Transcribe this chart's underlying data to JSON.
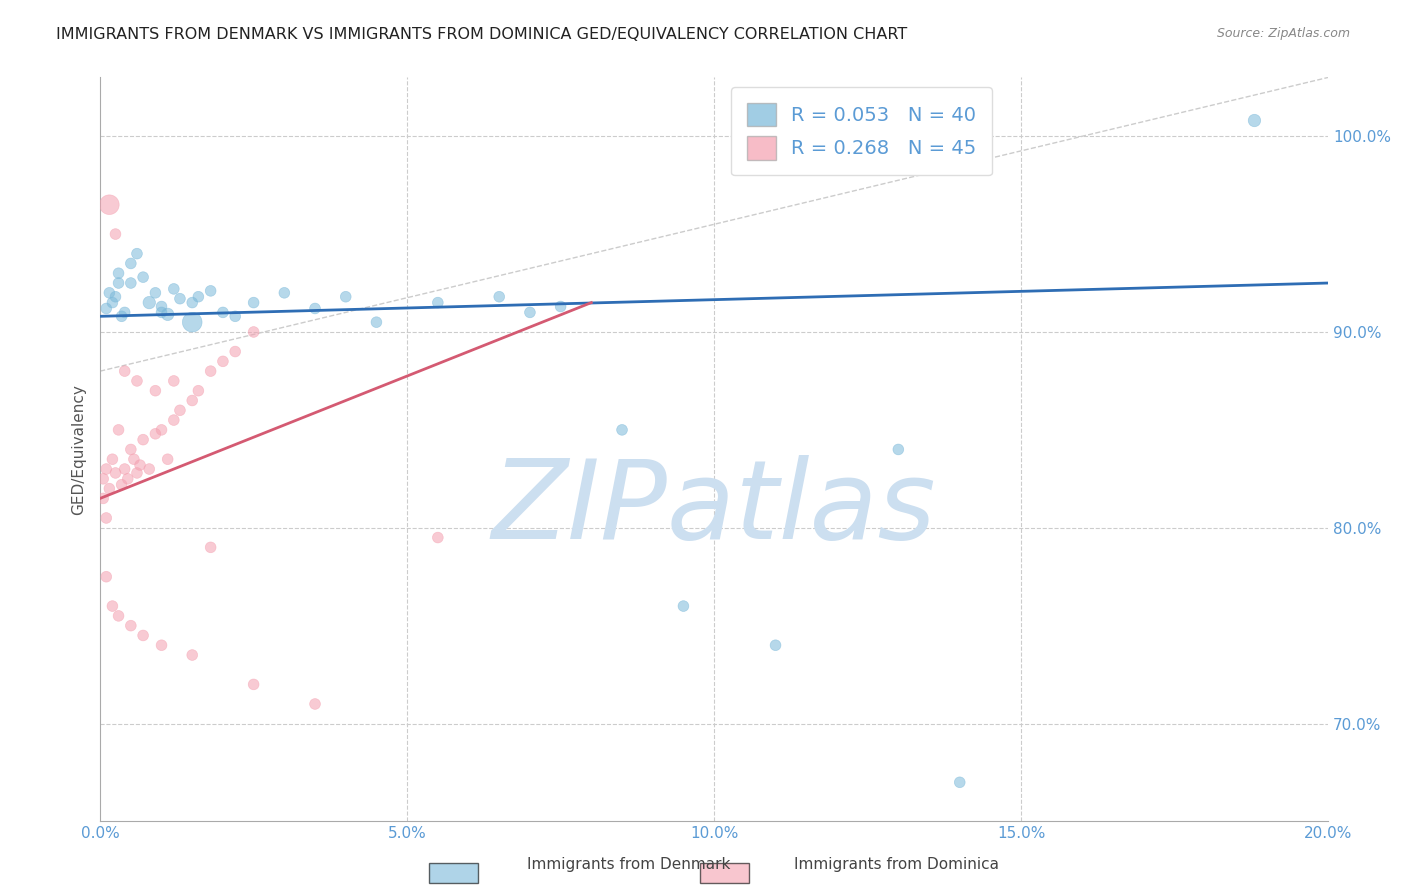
{
  "title": "IMMIGRANTS FROM DENMARK VS IMMIGRANTS FROM DOMINICA GED/EQUIVALENCY CORRELATION CHART",
  "source": "Source: ZipAtlas.com",
  "xlabel_ticks": [
    "0.0%",
    "5.0%",
    "10.0%",
    "15.0%",
    "20.0%"
  ],
  "xlabel_values": [
    0.0,
    5.0,
    10.0,
    15.0,
    20.0
  ],
  "ylabel_ticks": [
    "70.0%",
    "80.0%",
    "90.0%",
    "100.0%"
  ],
  "ylabel_values": [
    70.0,
    80.0,
    90.0,
    100.0
  ],
  "xmin": 0.0,
  "xmax": 20.0,
  "ymin": 65.0,
  "ymax": 103.0,
  "denmark_color": "#7ab8d9",
  "dominica_color": "#f4a0b0",
  "denmark_label": "Immigrants from Denmark",
  "dominica_label": "Immigrants from Dominica",
  "denmark_R": 0.053,
  "denmark_N": 40,
  "dominica_R": 0.268,
  "dominica_N": 45,
  "trend_blue": "#2e6db4",
  "trend_pink": "#d45a72",
  "diag_color": "#cccccc",
  "watermark": "ZIPatlas",
  "watermark_color": "#ccdff0",
  "title_color": "#222222",
  "right_axis_color": "#5b9bd5",
  "background_color": "#ffffff",
  "denmark_x": [
    0.1,
    0.15,
    0.2,
    0.25,
    0.3,
    0.35,
    0.4,
    0.5,
    0.6,
    0.7,
    0.8,
    0.9,
    1.0,
    1.1,
    1.2,
    1.3,
    1.5,
    1.6,
    1.8,
    2.0,
    2.2,
    2.5,
    3.0,
    3.5,
    4.0,
    4.5,
    5.5,
    6.5,
    7.0,
    7.5,
    8.5,
    9.5,
    11.0,
    13.0,
    14.0,
    18.8,
    0.3,
    0.5,
    1.0,
    1.5
  ],
  "denmark_y": [
    91.2,
    92.0,
    91.5,
    91.8,
    92.5,
    90.8,
    91.0,
    93.5,
    94.0,
    92.8,
    91.5,
    92.0,
    91.3,
    90.9,
    92.2,
    91.7,
    90.5,
    91.8,
    92.1,
    91.0,
    90.8,
    91.5,
    92.0,
    91.2,
    91.8,
    90.5,
    91.5,
    91.8,
    91.0,
    91.3,
    85.0,
    76.0,
    74.0,
    84.0,
    67.0,
    100.8,
    93.0,
    92.5,
    91.0,
    91.5
  ],
  "denmark_sizes": [
    60,
    60,
    60,
    60,
    60,
    60,
    60,
    60,
    60,
    60,
    80,
    60,
    60,
    80,
    60,
    60,
    200,
    60,
    60,
    60,
    60,
    60,
    60,
    60,
    60,
    60,
    60,
    60,
    60,
    60,
    60,
    60,
    60,
    60,
    60,
    80,
    60,
    60,
    60,
    60
  ],
  "dominica_x": [
    0.05,
    0.1,
    0.15,
    0.2,
    0.25,
    0.3,
    0.35,
    0.4,
    0.45,
    0.5,
    0.55,
    0.6,
    0.65,
    0.7,
    0.8,
    0.9,
    1.0,
    1.1,
    1.2,
    1.3,
    1.5,
    1.6,
    1.8,
    2.0,
    2.2,
    2.5,
    0.1,
    0.2,
    0.3,
    0.5,
    0.7,
    1.0,
    1.5,
    2.5,
    3.5,
    0.15,
    0.25,
    0.4,
    0.6,
    0.9,
    1.2,
    1.8,
    5.5,
    0.05,
    0.1
  ],
  "dominica_y": [
    82.5,
    83.0,
    82.0,
    83.5,
    82.8,
    85.0,
    82.2,
    83.0,
    82.5,
    84.0,
    83.5,
    82.8,
    83.2,
    84.5,
    83.0,
    84.8,
    85.0,
    83.5,
    85.5,
    86.0,
    86.5,
    87.0,
    88.0,
    88.5,
    89.0,
    90.0,
    77.5,
    76.0,
    75.5,
    75.0,
    74.5,
    74.0,
    73.5,
    72.0,
    71.0,
    96.5,
    95.0,
    88.0,
    87.5,
    87.0,
    87.5,
    79.0,
    79.5,
    81.5,
    80.5
  ],
  "dominica_sizes": [
    60,
    60,
    60,
    60,
    60,
    60,
    60,
    60,
    60,
    60,
    60,
    60,
    60,
    60,
    60,
    60,
    60,
    60,
    60,
    60,
    60,
    60,
    60,
    60,
    60,
    60,
    60,
    60,
    60,
    60,
    60,
    60,
    60,
    60,
    60,
    200,
    60,
    60,
    60,
    60,
    60,
    60,
    60,
    60,
    60
  ],
  "blue_trend_x0": 0.0,
  "blue_trend_y0": 90.8,
  "blue_trend_x1": 20.0,
  "blue_trend_y1": 92.5,
  "pink_trend_x0": 0.0,
  "pink_trend_y0": 81.5,
  "pink_trend_x1": 8.0,
  "pink_trend_y1": 91.5,
  "diag_x0": 0.0,
  "diag_y0": 88.0,
  "diag_x1": 20.0,
  "diag_y1": 103.0
}
